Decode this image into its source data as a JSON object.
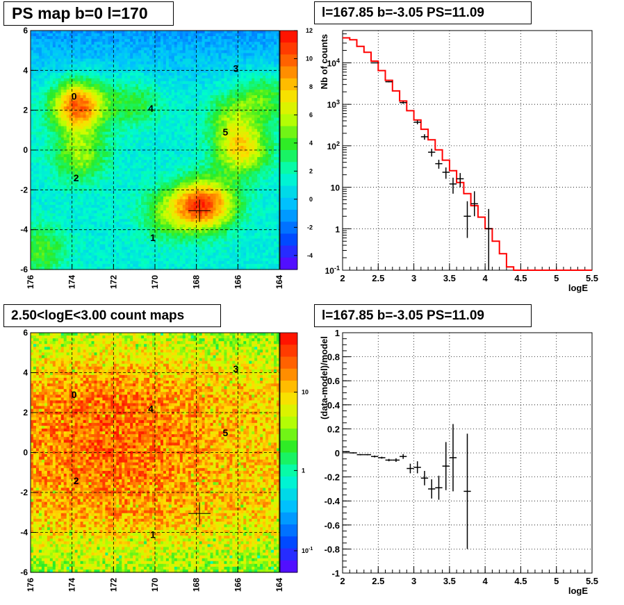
{
  "panels": {
    "tl_title": "PS map b=0 l=170",
    "tr_title": "l=167.85 b=-3.05 PS=11.09",
    "bl_title": "2.50<logE<3.00 count maps",
    "br_title": "l=167.85 b=-3.05 PS=11.09"
  },
  "chart_data": [
    {
      "type": "heatmap",
      "title": "PS map b=0 l=170",
      "x_ticks": [
        "176",
        "174",
        "172",
        "170",
        "168",
        "166",
        "164"
      ],
      "y_ticks": [
        "6",
        "4",
        "2",
        "0",
        "-2",
        "-4",
        "-6"
      ],
      "xlim": [
        176,
        164
      ],
      "ylim": [
        -6,
        6
      ],
      "colorbar_ticks": [
        "12",
        "10",
        "8",
        "6",
        "4",
        "2",
        "0",
        "-2",
        "-4"
      ],
      "colorbar_range": [
        -5,
        12
      ],
      "grid": true,
      "source_labels": [
        {
          "text": "0",
          "l": 173.9,
          "b": 2.7
        },
        {
          "text": "1",
          "l": 170.1,
          "b": -4.4
        },
        {
          "text": "2",
          "l": 173.8,
          "b": -1.4
        },
        {
          "text": "3",
          "l": 166.1,
          "b": 4.1
        },
        {
          "text": "4",
          "l": 170.2,
          "b": 2.1
        },
        {
          "text": "5",
          "l": 166.6,
          "b": 0.9
        }
      ],
      "marker": {
        "l": 167.85,
        "b": -3.05
      },
      "blobs": [
        {
          "l": 173.7,
          "b": 2.2,
          "amp": 9
        },
        {
          "l": 173.6,
          "b": -0.3,
          "amp": 4
        },
        {
          "l": 171.0,
          "b": 2.4,
          "amp": 2.5
        },
        {
          "l": 168.0,
          "b": -2.8,
          "amp": 7
        },
        {
          "l": 167.0,
          "b": -2.7,
          "amp": 4
        },
        {
          "l": 165.8,
          "b": 0.0,
          "amp": 6
        },
        {
          "l": 166.3,
          "b": 1.6,
          "amp": 3
        },
        {
          "l": 169.5,
          "b": -3.2,
          "amp": 3
        },
        {
          "l": 175.5,
          "b": -5.0,
          "amp": 3
        },
        {
          "l": 164.8,
          "b": 2.7,
          "amp": 3
        }
      ]
    },
    {
      "type": "line",
      "title": "l=167.85 b=-3.05 PS=11.09",
      "xlabel": "logE",
      "ylabel": "Nb of counts",
      "xlim": [
        2,
        5.5
      ],
      "ylim": [
        0.1,
        60000
      ],
      "yscale": "log",
      "x_ticks": [
        "2",
        "2.5",
        "3",
        "3.5",
        "4",
        "4.5",
        "5",
        "5.5"
      ],
      "y_ticks": [
        "10^-1",
        "1",
        "10",
        "10^2",
        "10^3",
        "10^4"
      ],
      "grid": true,
      "model_step": {
        "edges": [
          2.0,
          2.1,
          2.2,
          2.3,
          2.4,
          2.5,
          2.6,
          2.7,
          2.8,
          2.9,
          3.0,
          3.1,
          3.2,
          3.3,
          3.4,
          3.5,
          3.6,
          3.7,
          3.8,
          3.9,
          4.0,
          4.1,
          4.2,
          4.3,
          4.4,
          5.5
        ],
        "values": [
          40000,
          36000,
          25000,
          18000,
          11000,
          6500,
          3800,
          2100,
          1200,
          700,
          420,
          250,
          140,
          80,
          45,
          25,
          13,
          7,
          3.6,
          1.9,
          1.0,
          0.5,
          0.25,
          0.12,
          0.1
        ],
        "color": "#ff0000"
      },
      "data_points": [
        {
          "x": 2.45,
          "y": 10000,
          "xerr": 0.05,
          "yerr_lo": 200,
          "yerr_hi": 200
        },
        {
          "x": 2.65,
          "y": 3500,
          "xerr": 0.05,
          "yerr_lo": 120,
          "yerr_hi": 120
        },
        {
          "x": 2.85,
          "y": 1100,
          "xerr": 0.05,
          "yerr_lo": 70,
          "yerr_hi": 70
        },
        {
          "x": 3.05,
          "y": 370,
          "xerr": 0.05,
          "yerr_lo": 40,
          "yerr_hi": 40
        },
        {
          "x": 3.15,
          "y": 165,
          "xerr": 0.05,
          "yerr_lo": 25,
          "yerr_hi": 25
        },
        {
          "x": 3.25,
          "y": 70,
          "xerr": 0.05,
          "yerr_lo": 15,
          "yerr_hi": 15
        },
        {
          "x": 3.35,
          "y": 37,
          "xerr": 0.05,
          "yerr_lo": 9,
          "yerr_hi": 9
        },
        {
          "x": 3.45,
          "y": 23,
          "xerr": 0.05,
          "yerr_lo": 7,
          "yerr_hi": 7
        },
        {
          "x": 3.55,
          "y": 12,
          "xerr": 0.05,
          "yerr_lo": 5,
          "yerr_hi": 5
        },
        {
          "x": 3.65,
          "y": 16,
          "xerr": 0.05,
          "yerr_lo": 6,
          "yerr_hi": 6
        },
        {
          "x": 3.75,
          "y": 2,
          "xerr": 0.05,
          "yerr_lo": 1.4,
          "yerr_hi": 2.6
        },
        {
          "x": 3.85,
          "y": 4,
          "xerr": 0.05,
          "yerr_lo": 2,
          "yerr_hi": 4
        },
        {
          "x": 4.05,
          "y": 1,
          "xerr": 0.05,
          "yerr_lo": 0.9,
          "yerr_hi": 2
        }
      ]
    },
    {
      "type": "heatmap",
      "title": "2.50<logE<3.00 count maps",
      "x_ticks": [
        "176",
        "174",
        "172",
        "170",
        "168",
        "166",
        "164"
      ],
      "y_ticks": [
        "6",
        "4",
        "2",
        "0",
        "-2",
        "-4",
        "-6"
      ],
      "xlim": [
        176,
        164
      ],
      "ylim": [
        -6,
        6
      ],
      "colorbar_ticks": [
        "10",
        "1",
        "10^-1"
      ],
      "colorbar_scale": "log",
      "grid": true,
      "source_labels": [
        {
          "text": "0",
          "l": 173.9,
          "b": 2.9
        },
        {
          "text": "1",
          "l": 170.1,
          "b": -4.1
        },
        {
          "text": "2",
          "l": 173.8,
          "b": -1.4
        },
        {
          "text": "3",
          "l": 166.1,
          "b": 4.2
        },
        {
          "text": "4",
          "l": 170.2,
          "b": 2.2
        },
        {
          "text": "5",
          "l": 166.6,
          "b": 1.0
        }
      ],
      "marker": {
        "l": 167.85,
        "b": -3.05
      }
    },
    {
      "type": "scatter",
      "title": "l=167.85 b=-3.05 PS=11.09",
      "xlabel": "logE",
      "ylabel": "(data-model)/model",
      "xlim": [
        2,
        5.5
      ],
      "ylim": [
        -1,
        1
      ],
      "x_ticks": [
        "2",
        "2.5",
        "3",
        "3.5",
        "4",
        "4.5",
        "5",
        "5.5"
      ],
      "y_ticks": [
        "1",
        "0.8",
        "0.6",
        "0.4",
        "0.2",
        "0",
        "-0.2",
        "-0.4",
        "-0.6",
        "-0.8",
        "-1"
      ],
      "grid": true,
      "data_points": [
        {
          "x": 2.05,
          "y": 0.01,
          "xerr": 0.05,
          "yerr": 0.005
        },
        {
          "x": 2.15,
          "y": 0.0,
          "xerr": 0.05,
          "yerr": 0.005
        },
        {
          "x": 2.25,
          "y": -0.015,
          "xerr": 0.05,
          "yerr": 0.005
        },
        {
          "x": 2.35,
          "y": -0.015,
          "xerr": 0.05,
          "yerr": 0.005
        },
        {
          "x": 2.45,
          "y": -0.03,
          "xerr": 0.05,
          "yerr": 0.008
        },
        {
          "x": 2.55,
          "y": -0.04,
          "xerr": 0.05,
          "yerr": 0.008
        },
        {
          "x": 2.65,
          "y": -0.06,
          "xerr": 0.05,
          "yerr": 0.01
        },
        {
          "x": 2.75,
          "y": -0.06,
          "xerr": 0.05,
          "yerr": 0.015
        },
        {
          "x": 2.85,
          "y": -0.03,
          "xerr": 0.05,
          "yerr": 0.02
        },
        {
          "x": 2.95,
          "y": -0.13,
          "xerr": 0.05,
          "yerr": 0.04
        },
        {
          "x": 3.05,
          "y": -0.12,
          "xerr": 0.05,
          "yerr": 0.05
        },
        {
          "x": 3.15,
          "y": -0.21,
          "xerr": 0.05,
          "yerr": 0.06
        },
        {
          "x": 3.25,
          "y": -0.3,
          "xerr": 0.05,
          "yerr": 0.08
        },
        {
          "x": 3.35,
          "y": -0.29,
          "xerr": 0.05,
          "yerr": 0.1
        },
        {
          "x": 3.45,
          "y": -0.11,
          "xerr": 0.05,
          "yerr": 0.2
        },
        {
          "x": 3.55,
          "y": -0.04,
          "xerr": 0.05,
          "yerr": 0.28
        },
        {
          "x": 3.75,
          "y": -0.32,
          "xerr": 0.05,
          "yerr": 0.48
        }
      ]
    }
  ]
}
